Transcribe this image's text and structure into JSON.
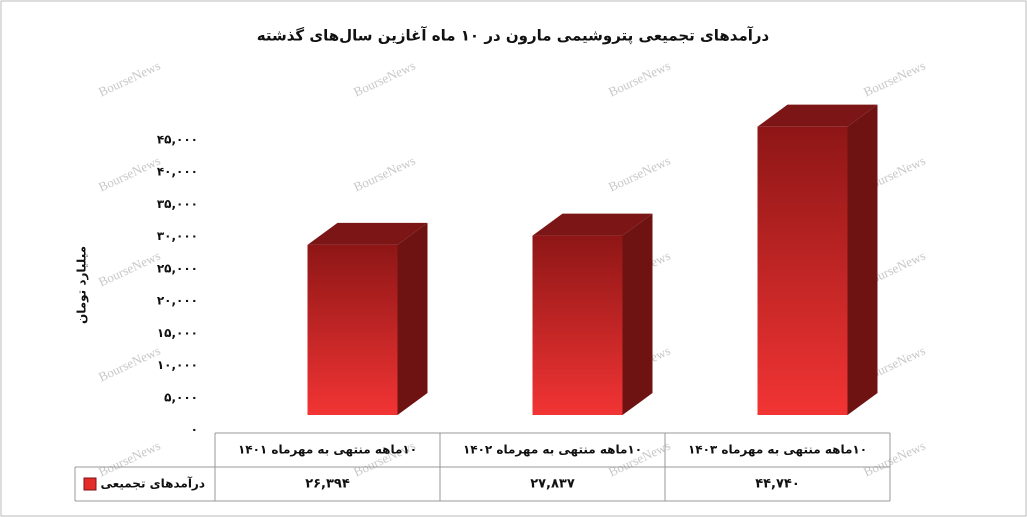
{
  "chart_data": {
    "type": "bar3d",
    "title": "درآمدهای تجمیعی پتروشیمی مارون در ۱۰ ماه آغازین سال‌های گذشته",
    "y_label": "میلیارد تومان",
    "watermark": "BourseNews",
    "categories": [
      "۱۰ماهه منتهی به مهرماه ۱۴۰۱",
      "۱۰ماهه منتهی به مهرماه ۱۴۰۲",
      "۱۰ماهه منتهی به مهرماه ۱۴۰۳"
    ],
    "series": [
      {
        "name": "درآمدهای تجمیعی",
        "color": "#e52a2a",
        "values": [
          26394,
          27837,
          44740
        ],
        "value_labels": [
          "۲۶,۳۹۴",
          "۲۷,۸۳۷",
          "۴۴,۷۴۰"
        ]
      }
    ],
    "ylim": [
      0,
      45000
    ],
    "yticks": [
      {
        "value": 0,
        "label": "۰"
      },
      {
        "value": 5000,
        "label": "۵,۰۰۰"
      },
      {
        "value": 10000,
        "label": "۱۰,۰۰۰"
      },
      {
        "value": 15000,
        "label": "۱۵,۰۰۰"
      },
      {
        "value": 20000,
        "label": "۲۰,۰۰۰"
      },
      {
        "value": 25000,
        "label": "۲۵,۰۰۰"
      },
      {
        "value": 30000,
        "label": "۳۰,۰۰۰"
      },
      {
        "value": 35000,
        "label": "۳۵,۰۰۰"
      },
      {
        "value": 40000,
        "label": "۴۰,۰۰۰"
      },
      {
        "value": 45000,
        "label": "۴۵,۰۰۰"
      }
    ]
  }
}
